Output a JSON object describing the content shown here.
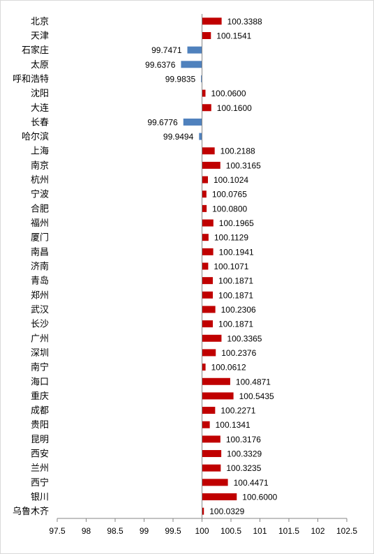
{
  "chart_data": {
    "type": "bar",
    "orientation": "horizontal",
    "baseline": 100,
    "xlim": [
      97.5,
      102.5
    ],
    "x_ticks": [
      "97.5",
      "98",
      "98.5",
      "99",
      "99.5",
      "100",
      "100.5",
      "101",
      "101.5",
      "102",
      "102.5"
    ],
    "grid": false,
    "colors": {
      "above": "#c00000",
      "below": "#4f81bd"
    },
    "categories": [
      "北京",
      "天津",
      "石家庄",
      "太原",
      "呼和浩特",
      "沈阳",
      "大连",
      "长春",
      "哈尔滨",
      "上海",
      "南京",
      "杭州",
      "宁波",
      "合肥",
      "福州",
      "厦门",
      "南昌",
      "济南",
      "青岛",
      "郑州",
      "武汉",
      "长沙",
      "广州",
      "深圳",
      "南宁",
      "海口",
      "重庆",
      "成都",
      "贵阳",
      "昆明",
      "西安",
      "兰州",
      "西宁",
      "银川",
      "乌鲁木齐"
    ],
    "values": [
      100.3388,
      100.1541,
      99.7471,
      99.6376,
      99.9835,
      100.06,
      100.16,
      99.6776,
      99.9494,
      100.2188,
      100.3165,
      100.1024,
      100.0765,
      100.08,
      100.1965,
      100.1129,
      100.1941,
      100.1071,
      100.1871,
      100.1871,
      100.2306,
      100.1871,
      100.3365,
      100.2376,
      100.0612,
      100.4871,
      100.5435,
      100.2271,
      100.1341,
      100.3176,
      100.3329,
      100.3235,
      100.4471,
      100.6,
      100.0329
    ],
    "value_labels": [
      "100.3388",
      "100.1541",
      "99.7471",
      "99.6376",
      "99.9835",
      "100.0600",
      "100.1600",
      "99.6776",
      "99.9494",
      "100.2188",
      "100.3165",
      "100.1024",
      "100.0765",
      "100.0800",
      "100.1965",
      "100.1129",
      "100.1941",
      "100.1071",
      "100.1871",
      "100.1871",
      "100.2306",
      "100.1871",
      "100.3365",
      "100.2376",
      "100.0612",
      "100.4871",
      "100.5435",
      "100.2271",
      "100.1341",
      "100.3176",
      "100.3329",
      "100.3235",
      "100.4471",
      "100.6000",
      "100.0329"
    ]
  }
}
